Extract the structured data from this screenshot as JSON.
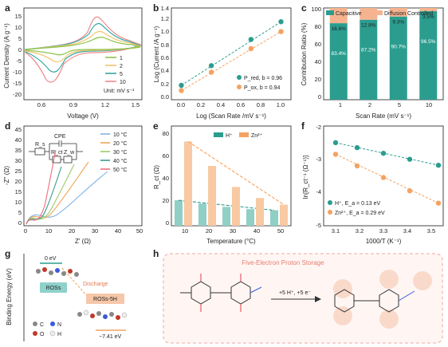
{
  "panels": {
    "a": {
      "label": "a",
      "xlabel": "Voltage (V)",
      "ylabel": "Current Density (A g⁻¹)",
      "xticks": [
        "0.6",
        "0.9",
        "1.2",
        "1.5"
      ],
      "yticks": [
        "-20",
        "-15",
        "-10",
        "-5",
        "0",
        "5",
        "10",
        "15"
      ],
      "unit": "Unit: mV s⁻¹",
      "legend": [
        {
          "name": "1",
          "color": "#8bc34a"
        },
        {
          "name": "2",
          "color": "#f2c46b"
        },
        {
          "name": "5",
          "color": "#35a8a6"
        },
        {
          "name": "10",
          "color": "#f08a8a"
        }
      ]
    },
    "b": {
      "label": "b",
      "xlabel": "Log (Scan Rate /mV s⁻¹)",
      "ylabel": "Log (Current /A g⁻¹)",
      "xticks": [
        "0.0",
        "0.2",
        "0.4",
        "0.6",
        "0.8",
        "1.0"
      ],
      "yticks": [
        "0.0",
        "0.2",
        "0.4",
        "0.6",
        "0.8",
        "1.0",
        "1.2",
        "1.4"
      ],
      "legend": [
        {
          "name": "P_red, b = 0.96",
          "color": "#2a9d8f"
        },
        {
          "name": "P_ox, b = 0.94",
          "color": "#f4a261"
        }
      ]
    },
    "c": {
      "label": "c",
      "xlabel": "Scan Rate (mV s⁻¹)",
      "ylabel": "Contribution Ratio (%)",
      "xticks": [
        "1",
        "2",
        "5",
        "10"
      ],
      "yticks": [
        "0",
        "20",
        "40",
        "60",
        "80",
        "100"
      ],
      "legend": [
        "Capacitive",
        "Diffusion Controlled"
      ],
      "cap_labels": [
        "83.4%",
        "87.2%",
        "90.7%",
        "96.5%"
      ],
      "diff_labels": [
        "16.6%",
        "12.8%",
        "9.3%",
        "3.5%"
      ]
    },
    "d": {
      "label": "d",
      "xlabel": "Z' (Ω)",
      "ylabel": "-Z'' (Ω)",
      "xticks": [
        "0",
        "10",
        "20",
        "30",
        "40",
        "50"
      ],
      "yticks": [
        "0",
        "5",
        "10",
        "15",
        "20",
        "25",
        "30",
        "35",
        "40",
        "45"
      ],
      "circuit": {
        "cpe": "CPE",
        "rs": "R_s",
        "rct": "R_ct",
        "zw": "Z_w"
      },
      "legend": [
        {
          "name": "10 °C",
          "color": "#7fb3e6"
        },
        {
          "name": "20 °C",
          "color": "#f2a65a"
        },
        {
          "name": "30 °C",
          "color": "#9ccc65"
        },
        {
          "name": "40 °C",
          "color": "#3a9a8c"
        },
        {
          "name": "50 °C",
          "color": "#ef6f7a"
        }
      ]
    },
    "e": {
      "label": "e",
      "xlabel": "Temperature (°C)",
      "ylabel": "R_ct (Ω)",
      "xticks": [
        "10",
        "20",
        "30",
        "40",
        "50"
      ],
      "yticks": [
        "0",
        "20",
        "40",
        "60",
        "80"
      ],
      "legend": [
        {
          "name": "H⁺",
          "color": "#2a9d8f"
        },
        {
          "name": "Zn²⁺",
          "color": "#f4a261"
        }
      ]
    },
    "f": {
      "label": "f",
      "xlabel": "1000/T (K⁻¹)",
      "ylabel": "ln[R_ct⁻¹ (Ω⁻¹)]",
      "xticks": [
        "3.1",
        "3.2",
        "3.3",
        "3.4",
        "3.5"
      ],
      "yticks": [
        "-5",
        "-4",
        "-3",
        "-2"
      ],
      "legend": [
        {
          "name": "H⁺, E_a = 0.13 eV",
          "color": "#2a9d8f"
        },
        {
          "name": "Zn²⁺, E_a = 0.29 eV",
          "color": "#f4a261"
        }
      ]
    },
    "g": {
      "label": "g",
      "ylabel": "Binding Energy (eV)",
      "zero": "0 eV",
      "ros": "ROSs",
      "discharge": "Discharge",
      "ros5h": "ROSs-5H",
      "energy": "−7.41 eV",
      "atoms": [
        "C",
        "N",
        "O",
        "H"
      ]
    },
    "h": {
      "label": "h",
      "title": "Five-Electron Proton Storage",
      "reaction": "+5 H⁺, +5 e⁻"
    }
  },
  "chart_data": [
    {
      "panel": "b",
      "type": "scatter",
      "xlabel": "Log (Scan Rate /mV s⁻¹)",
      "ylabel": "Log (Current /A g⁻¹)",
      "xlim": [
        -0.1,
        1.1
      ],
      "ylim": [
        0.0,
        1.4
      ],
      "series": [
        {
          "name": "P_red, b = 0.96",
          "x": [
            0,
            0.301,
            0.699,
            1.0
          ],
          "y": [
            0.22,
            0.52,
            0.92,
            1.19
          ]
        },
        {
          "name": "P_ox, b = 0.94",
          "x": [
            0,
            0.301,
            0.699,
            1.0
          ],
          "y": [
            0.14,
            0.42,
            0.78,
            1.04
          ]
        }
      ]
    },
    {
      "panel": "c",
      "type": "bar",
      "categories": [
        "1",
        "2",
        "5",
        "10"
      ],
      "series": [
        {
          "name": "Capacitive",
          "values": [
            83.4,
            87.2,
            90.7,
            96.5
          ]
        },
        {
          "name": "Diffusion Controlled",
          "values": [
            16.6,
            12.8,
            9.3,
            3.5
          ]
        }
      ],
      "ylim": [
        0,
        100
      ]
    },
    {
      "panel": "e",
      "type": "bar",
      "categories": [
        "10",
        "20",
        "30",
        "40",
        "50"
      ],
      "series": [
        {
          "name": "H⁺",
          "values": [
            23,
            20,
            17,
            15,
            14
          ]
        },
        {
          "name": "Zn²⁺",
          "values": [
            76,
            54,
            35,
            25,
            19
          ]
        }
      ],
      "ylim": [
        0,
        90
      ]
    },
    {
      "panel": "f",
      "type": "scatter",
      "xlim": [
        3.05,
        3.55
      ],
      "ylim": [
        -5,
        -2
      ],
      "series": [
        {
          "name": "H⁺, E_a = 0.13 eV",
          "x": [
            3.1,
            3.19,
            3.3,
            3.41,
            3.53
          ],
          "y": [
            -2.5,
            -2.65,
            -2.82,
            -3.0,
            -3.18
          ]
        },
        {
          "name": "Zn²⁺, E_a = 0.29 eV",
          "x": [
            3.1,
            3.19,
            3.3,
            3.41,
            3.53
          ],
          "y": [
            -2.85,
            -3.2,
            -3.55,
            -3.95,
            -4.32
          ]
        }
      ]
    }
  ]
}
